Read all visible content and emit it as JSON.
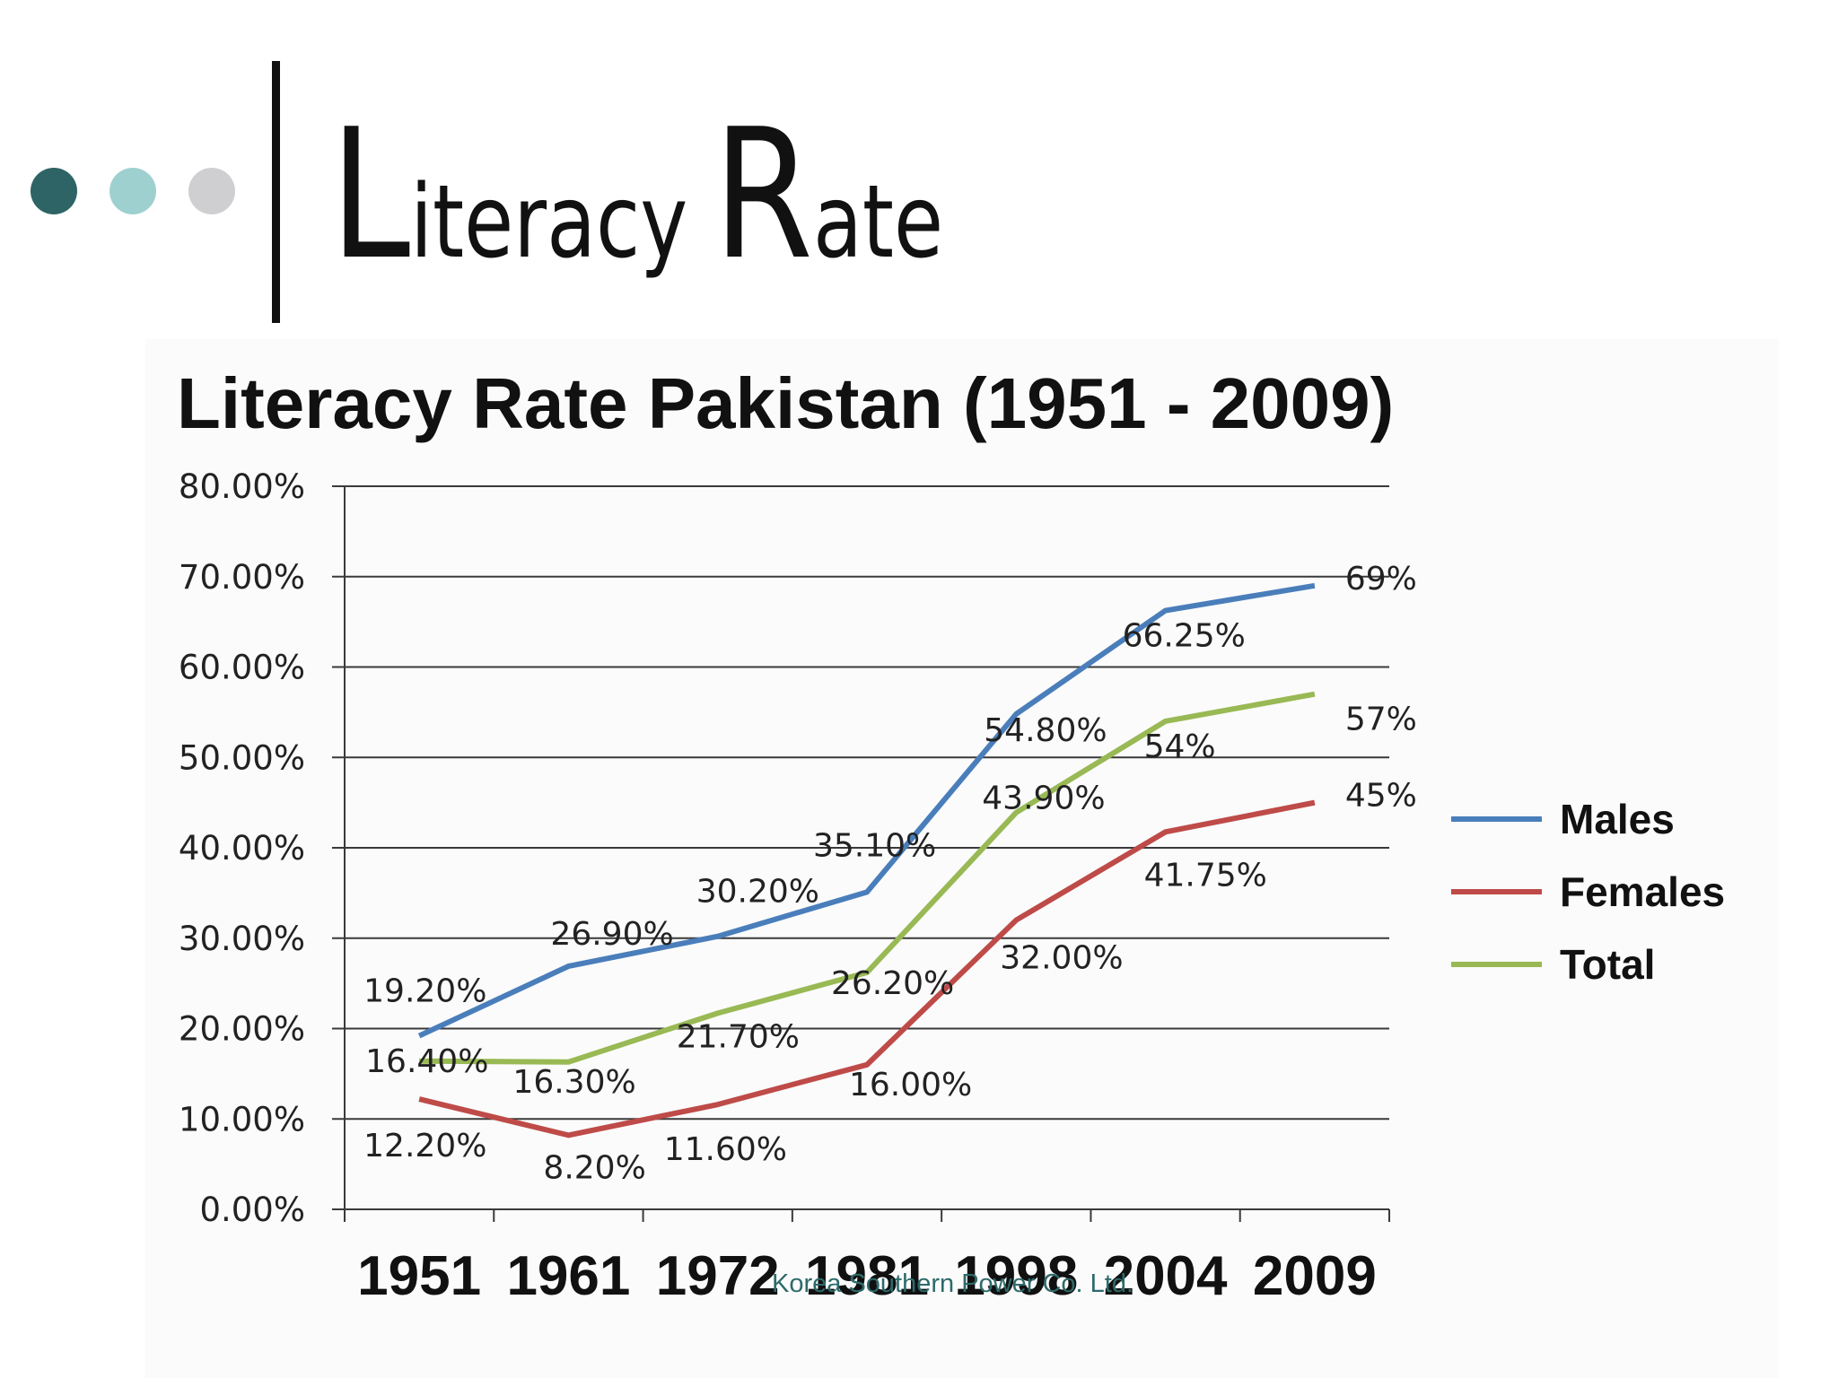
{
  "slide": {
    "title_cap_1": "L",
    "title_rest_1": "iteracy",
    "title_cap_2": "R",
    "title_rest_2": "ate",
    "bullet_colors": [
      "#2e6466",
      "#9fd0d0",
      "#cfcfd2"
    ],
    "accent_color": "#111111",
    "footer_text": "Korea Southern Power Co. Ltd."
  },
  "chart_data": {
    "type": "line",
    "title": "Literacy Rate Pakistan (1951 - 2009)",
    "categories": [
      "1951",
      "1961",
      "1972",
      "1981",
      "1998",
      "2004",
      "2009"
    ],
    "ylim": [
      0,
      80
    ],
    "y_ticks": [
      "0.00%",
      "10.00%",
      "20.00%",
      "30.00%",
      "40.00%",
      "50.00%",
      "60.00%",
      "70.00%",
      "80.00%"
    ],
    "grid": true,
    "legend_position": "right",
    "series": [
      {
        "name": "Males",
        "color": "#4a7ebb",
        "values": [
          19.2,
          26.9,
          30.2,
          35.1,
          54.8,
          66.25,
          69
        ],
        "labels": [
          "19.20%",
          "26.90%",
          "30.20%",
          "35.10%",
          "54.80%",
          "66.25%",
          "69%"
        ]
      },
      {
        "name": "Females",
        "color": "#be4b48",
        "values": [
          12.2,
          8.2,
          11.6,
          16.0,
          32.0,
          41.75,
          45
        ],
        "labels": [
          "12.20%",
          "8.20%",
          "11.60%",
          "16.00%",
          "32.00%",
          "41.75%",
          "45%"
        ]
      },
      {
        "name": "Total",
        "color": "#98b954",
        "values": [
          16.4,
          16.3,
          21.7,
          26.2,
          43.9,
          54,
          57
        ],
        "labels": [
          "16.40%",
          "16.30%",
          "21.70%",
          "26.20%",
          "43.90%",
          "54%",
          "57%"
        ]
      }
    ]
  }
}
